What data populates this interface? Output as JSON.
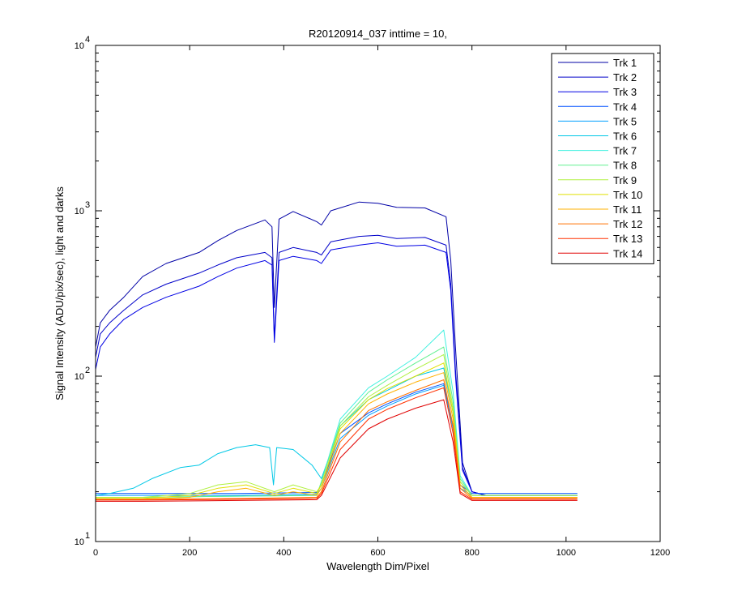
{
  "chart_data": {
    "type": "line",
    "title": "R20120914_037 inttime = 10,",
    "xlabel": "Wavelength Dim/Pixel",
    "ylabel": "Signal Intensity (ADU/pix/sec), light and darks",
    "xlim": [
      0,
      1200
    ],
    "ylim": [
      10,
      10000
    ],
    "yscale": "log",
    "x_ticks": [
      0,
      200,
      400,
      600,
      800,
      1000,
      1200
    ],
    "y_ticks": [
      {
        "value": 10,
        "base": "10",
        "exp": "1"
      },
      {
        "value": 100,
        "base": "10",
        "exp": "2"
      },
      {
        "value": 1000,
        "base": "10",
        "exp": "3"
      },
      {
        "value": 10000,
        "base": "10",
        "exp": "4"
      }
    ],
    "grid": false,
    "legend_position": "top-right",
    "series": [
      {
        "name": "Trk 1",
        "color": "#0000a6",
        "values": [
          [
            0,
            150
          ],
          [
            10,
            210
          ],
          [
            30,
            250
          ],
          [
            60,
            300
          ],
          [
            100,
            400
          ],
          [
            150,
            480
          ],
          [
            220,
            560
          ],
          [
            260,
            660
          ],
          [
            300,
            760
          ],
          [
            360,
            880
          ],
          [
            375,
            800
          ],
          [
            380,
            260
          ],
          [
            390,
            890
          ],
          [
            420,
            990
          ],
          [
            470,
            860
          ],
          [
            480,
            820
          ],
          [
            500,
            1000
          ],
          [
            560,
            1130
          ],
          [
            600,
            1110
          ],
          [
            640,
            1050
          ],
          [
            700,
            1040
          ],
          [
            745,
            920
          ],
          [
            755,
            500
          ],
          [
            765,
            150
          ],
          [
            780,
            30
          ],
          [
            800,
            20
          ],
          [
            830,
            19
          ],
          [
            900,
            19
          ],
          [
            1000,
            19
          ],
          [
            1024,
            19
          ]
        ]
      },
      {
        "name": "Trk 2",
        "color": "#0000c9",
        "values": [
          [
            0,
            130
          ],
          [
            10,
            180
          ],
          [
            30,
            210
          ],
          [
            60,
            250
          ],
          [
            100,
            310
          ],
          [
            150,
            360
          ],
          [
            220,
            420
          ],
          [
            260,
            470
          ],
          [
            300,
            520
          ],
          [
            360,
            560
          ],
          [
            375,
            520
          ],
          [
            380,
            170
          ],
          [
            390,
            560
          ],
          [
            420,
            600
          ],
          [
            470,
            560
          ],
          [
            480,
            540
          ],
          [
            500,
            650
          ],
          [
            560,
            700
          ],
          [
            600,
            710
          ],
          [
            640,
            680
          ],
          [
            700,
            690
          ],
          [
            745,
            620
          ],
          [
            755,
            360
          ],
          [
            765,
            110
          ],
          [
            780,
            28
          ],
          [
            800,
            20
          ],
          [
            830,
            19
          ],
          [
            900,
            19
          ],
          [
            1000,
            19
          ],
          [
            1024,
            19
          ]
        ]
      },
      {
        "name": "Trk 3",
        "color": "#0000e4",
        "values": [
          [
            0,
            110
          ],
          [
            10,
            150
          ],
          [
            30,
            180
          ],
          [
            60,
            220
          ],
          [
            100,
            260
          ],
          [
            150,
            300
          ],
          [
            220,
            350
          ],
          [
            260,
            400
          ],
          [
            300,
            450
          ],
          [
            360,
            500
          ],
          [
            375,
            470
          ],
          [
            380,
            160
          ],
          [
            390,
            500
          ],
          [
            420,
            530
          ],
          [
            470,
            500
          ],
          [
            480,
            480
          ],
          [
            500,
            580
          ],
          [
            560,
            620
          ],
          [
            600,
            640
          ],
          [
            640,
            610
          ],
          [
            700,
            620
          ],
          [
            745,
            560
          ],
          [
            755,
            330
          ],
          [
            765,
            100
          ],
          [
            780,
            27
          ],
          [
            800,
            20
          ],
          [
            830,
            19
          ],
          [
            900,
            19
          ],
          [
            1000,
            19
          ],
          [
            1024,
            19
          ]
        ]
      },
      {
        "name": "Trk 4",
        "color": "#0050ff",
        "values": [
          [
            0,
            19.5
          ],
          [
            100,
            19.5
          ],
          [
            300,
            19.5
          ],
          [
            470,
            19.8
          ],
          [
            480,
            22
          ],
          [
            520,
            45
          ],
          [
            580,
            60
          ],
          [
            620,
            68
          ],
          [
            680,
            80
          ],
          [
            740,
            90
          ],
          [
            760,
            50
          ],
          [
            775,
            22
          ],
          [
            800,
            19.5
          ],
          [
            1024,
            19.5
          ]
        ]
      },
      {
        "name": "Trk 5",
        "color": "#00a0ff",
        "values": [
          [
            0,
            19
          ],
          [
            100,
            19
          ],
          [
            300,
            19
          ],
          [
            470,
            19.3
          ],
          [
            480,
            21
          ],
          [
            520,
            42
          ],
          [
            580,
            58
          ],
          [
            620,
            66
          ],
          [
            680,
            78
          ],
          [
            740,
            88
          ],
          [
            760,
            48
          ],
          [
            775,
            21
          ],
          [
            800,
            19
          ],
          [
            1024,
            19
          ]
        ]
      },
      {
        "name": "Trk 6",
        "color": "#00c8e6",
        "values": [
          [
            0,
            19
          ],
          [
            30,
            19.5
          ],
          [
            80,
            21
          ],
          [
            120,
            24
          ],
          [
            180,
            28
          ],
          [
            220,
            29
          ],
          [
            260,
            34
          ],
          [
            300,
            37
          ],
          [
            340,
            38.5
          ],
          [
            370,
            37
          ],
          [
            378,
            22
          ],
          [
            385,
            37
          ],
          [
            420,
            36
          ],
          [
            460,
            29
          ],
          [
            480,
            24
          ],
          [
            520,
            50
          ],
          [
            580,
            72
          ],
          [
            620,
            82
          ],
          [
            680,
            100
          ],
          [
            740,
            112
          ],
          [
            760,
            60
          ],
          [
            775,
            23
          ],
          [
            800,
            19
          ],
          [
            1024,
            19
          ]
        ]
      },
      {
        "name": "Trk 7",
        "color": "#40f0e0",
        "values": [
          [
            0,
            18.5
          ],
          [
            100,
            18.5
          ],
          [
            300,
            18.8
          ],
          [
            470,
            19
          ],
          [
            480,
            23
          ],
          [
            520,
            55
          ],
          [
            580,
            85
          ],
          [
            620,
            100
          ],
          [
            680,
            130
          ],
          [
            740,
            190
          ],
          [
            760,
            80
          ],
          [
            775,
            25
          ],
          [
            800,
            19
          ],
          [
            1024,
            19
          ]
        ]
      },
      {
        "name": "Trk 8",
        "color": "#60f090",
        "values": [
          [
            0,
            18.5
          ],
          [
            100,
            18.5
          ],
          [
            300,
            18.8
          ],
          [
            470,
            19
          ],
          [
            480,
            23
          ],
          [
            520,
            52
          ],
          [
            580,
            80
          ],
          [
            620,
            95
          ],
          [
            680,
            120
          ],
          [
            740,
            150
          ],
          [
            760,
            70
          ],
          [
            775,
            24
          ],
          [
            800,
            19
          ],
          [
            1024,
            19
          ]
        ]
      },
      {
        "name": "Trk 9",
        "color": "#b0f040",
        "values": [
          [
            0,
            18.5
          ],
          [
            100,
            18.5
          ],
          [
            200,
            19.5
          ],
          [
            260,
            22
          ],
          [
            320,
            23
          ],
          [
            380,
            20
          ],
          [
            420,
            22
          ],
          [
            470,
            20
          ],
          [
            480,
            22
          ],
          [
            520,
            50
          ],
          [
            580,
            75
          ],
          [
            620,
            88
          ],
          [
            680,
            110
          ],
          [
            740,
            135
          ],
          [
            760,
            64
          ],
          [
            775,
            23
          ],
          [
            800,
            19
          ],
          [
            1024,
            19
          ]
        ]
      },
      {
        "name": "Trk 10",
        "color": "#e0e000",
        "values": [
          [
            0,
            18.2
          ],
          [
            100,
            18.2
          ],
          [
            200,
            19
          ],
          [
            260,
            21
          ],
          [
            320,
            22
          ],
          [
            380,
            19.5
          ],
          [
            420,
            21
          ],
          [
            470,
            19.5
          ],
          [
            480,
            22
          ],
          [
            520,
            48
          ],
          [
            580,
            72
          ],
          [
            620,
            84
          ],
          [
            680,
            100
          ],
          [
            740,
            120
          ],
          [
            760,
            60
          ],
          [
            775,
            22
          ],
          [
            800,
            18.5
          ],
          [
            1024,
            18.5
          ]
        ]
      },
      {
        "name": "Trk 11",
        "color": "#ffb000",
        "values": [
          [
            0,
            18
          ],
          [
            100,
            18
          ],
          [
            200,
            18.5
          ],
          [
            260,
            20
          ],
          [
            320,
            21
          ],
          [
            380,
            19
          ],
          [
            420,
            20
          ],
          [
            470,
            19
          ],
          [
            480,
            21
          ],
          [
            520,
            45
          ],
          [
            580,
            68
          ],
          [
            620,
            78
          ],
          [
            680,
            92
          ],
          [
            740,
            105
          ],
          [
            760,
            55
          ],
          [
            775,
            22
          ],
          [
            800,
            18.5
          ],
          [
            1024,
            18.5
          ]
        ]
      },
      {
        "name": "Trk 12",
        "color": "#ff7000",
        "values": [
          [
            0,
            18
          ],
          [
            100,
            18
          ],
          [
            300,
            18.2
          ],
          [
            470,
            18.5
          ],
          [
            480,
            20
          ],
          [
            520,
            40
          ],
          [
            580,
            62
          ],
          [
            620,
            70
          ],
          [
            680,
            82
          ],
          [
            740,
            95
          ],
          [
            760,
            50
          ],
          [
            775,
            21
          ],
          [
            800,
            18.2
          ],
          [
            1024,
            18.2
          ]
        ]
      },
      {
        "name": "Trk 13",
        "color": "#ff3000",
        "values": [
          [
            0,
            17.8
          ],
          [
            100,
            17.8
          ],
          [
            300,
            18
          ],
          [
            470,
            18.2
          ],
          [
            480,
            19.5
          ],
          [
            520,
            36
          ],
          [
            580,
            55
          ],
          [
            620,
            63
          ],
          [
            680,
            74
          ],
          [
            740,
            85
          ],
          [
            760,
            45
          ],
          [
            775,
            20
          ],
          [
            800,
            18
          ],
          [
            1024,
            18
          ]
        ]
      },
      {
        "name": "Trk 14",
        "color": "#e00000",
        "values": [
          [
            0,
            17.5
          ],
          [
            100,
            17.5
          ],
          [
            300,
            17.7
          ],
          [
            470,
            17.9
          ],
          [
            480,
            19
          ],
          [
            520,
            32
          ],
          [
            580,
            48
          ],
          [
            620,
            55
          ],
          [
            680,
            64
          ],
          [
            740,
            72
          ],
          [
            760,
            40
          ],
          [
            775,
            19.5
          ],
          [
            800,
            17.7
          ],
          [
            1024,
            17.7
          ]
        ]
      }
    ]
  }
}
